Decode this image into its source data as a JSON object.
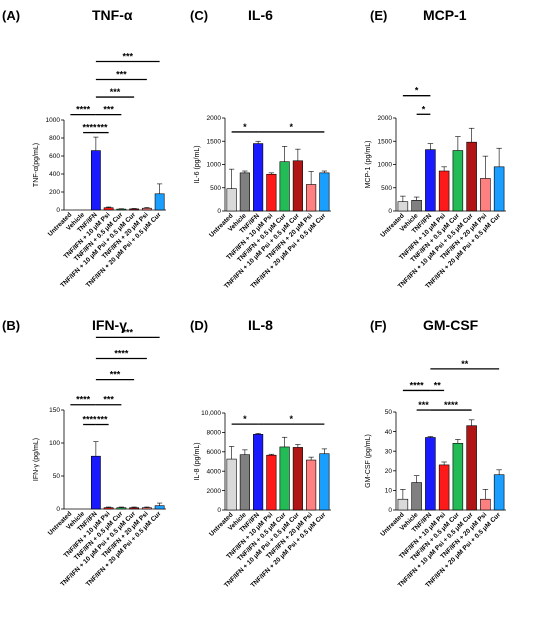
{
  "colors": [
    "#d9d9d9",
    "#808080",
    "#1a1aff",
    "#ff1a1a",
    "#22bb55",
    "#b01515",
    "#ff8080",
    "#1a9fff"
  ],
  "chart_data": [
    {
      "type": "bar",
      "id": "A",
      "panel_label": "(A)",
      "title": "TNF-α",
      "ylabel": "TNF-α(pg/mL)",
      "ylim": [
        0,
        1000
      ],
      "yticks": [
        0,
        200,
        400,
        600,
        800,
        1000
      ],
      "ytick_labels": [
        "0",
        "200",
        "400",
        "600",
        "800",
        "1000"
      ],
      "categories": [
        "Untreated",
        "Vehicle",
        "TNF/IFN",
        "TNF/IFN + 10 μM Psi",
        "TNF/IFN + 0.5 μM Cur",
        "TNF/IFN + 10 μM Psi + 0.5 μM Cur",
        "TNF/IFN + 20 μM Psi",
        "TNF/IFN + 20 μM Psi + 0.5 μM Cur"
      ],
      "values": [
        0,
        0,
        660,
        25,
        10,
        12,
        20,
        180
      ],
      "errors": [
        0,
        0,
        150,
        8,
        4,
        5,
        8,
        110
      ],
      "significance": [
        {
          "from": 2,
          "to": 7,
          "label": "***",
          "y": 1650
        },
        {
          "from": 2,
          "to": 6,
          "label": "***",
          "y": 1450
        },
        {
          "from": 2,
          "to": 5,
          "label": "***",
          "y": 1255
        },
        {
          "from": 0,
          "to": 2,
          "label": "****",
          "y": 1060
        },
        {
          "from": 2,
          "to": 4,
          "label": "***",
          "y": 1060
        },
        {
          "from": 1,
          "to": 2,
          "label": "****",
          "y": 860
        },
        {
          "from": 2,
          "to": 3,
          "label": "***",
          "y": 860
        }
      ]
    },
    {
      "type": "bar",
      "id": "C",
      "panel_label": "(C)",
      "title": "IL-6",
      "ylabel": "IL-6 (pg/mL)",
      "ylim": [
        0,
        2000
      ],
      "yticks": [
        0,
        500,
        1000,
        1500,
        2000
      ],
      "ytick_labels": [
        "0",
        "500",
        "1000",
        "1500",
        "2000"
      ],
      "categories": [
        "Untreated",
        "Vehicle",
        "TNF/IFN",
        "TNF/IFN + 10 μM Psi",
        "TNF/IFN + 0.5 μM Cur",
        "TNF/IFN + 10 μM Psi + 0.5 μM Cur",
        "TNF/IFN + 20 μM Psi",
        "TNF/IFN + 20 μM Psi + 0.5 μM Cur"
      ],
      "values": [
        480,
        820,
        1450,
        790,
        1060,
        1080,
        570,
        820
      ],
      "errors": [
        420,
        40,
        50,
        30,
        330,
        250,
        280,
        40
      ],
      "significance": [
        {
          "from": 0,
          "to": 2,
          "label": "*",
          "y": 1700
        },
        {
          "from": 2,
          "to": 7,
          "label": "*",
          "y": 1700
        }
      ]
    },
    {
      "type": "bar",
      "id": "E",
      "panel_label": "(E)",
      "title": "MCP-1",
      "ylabel": "MCP-1 (pg/mL)",
      "ylim": [
        0,
        2000
      ],
      "yticks": [
        0,
        500,
        1000,
        1500,
        2000
      ],
      "ytick_labels": [
        "0",
        "500",
        "1000",
        "1500",
        "2000"
      ],
      "categories": [
        "Untreated",
        "Vehicle",
        "TNF/IFN",
        "TNF/IFN + 10 μM Psi",
        "TNF/IFN + 0.5 μM Cur",
        "TNF/IFN + 10 μM Psi + 0.5 μM Cur",
        "TNF/IFN + 20 μM Psi",
        "TNF/IFN + 20 μM Psi + 0.5 μM Cur"
      ],
      "values": [
        200,
        230,
        1320,
        860,
        1300,
        1480,
        700,
        950
      ],
      "errors": [
        120,
        70,
        130,
        90,
        300,
        300,
        480,
        400
      ],
      "significance": [
        {
          "from": 0,
          "to": 2,
          "label": "*",
          "y": 2480
        },
        {
          "from": 1,
          "to": 2,
          "label": "*",
          "y": 2080
        }
      ]
    },
    {
      "type": "bar",
      "id": "B",
      "panel_label": "(B)",
      "title": "IFN-γ",
      "ylabel": "IFN-γ (pg/mL)",
      "ylim": [
        0,
        150
      ],
      "yticks": [
        0,
        50,
        100,
        150
      ],
      "ytick_labels": [
        "0",
        "50",
        "100",
        "150"
      ],
      "categories": [
        "Untreated",
        "Vehicle",
        "TNF/IFN",
        "TNF/IFN + 10 μM Psi",
        "TNF/IFN + 0.5 μM Cur",
        "TNF/IFN + 10 μM Psi + 0.5 μM Cur",
        "TNF/IFN + 20 μM Psi",
        "TNF/IFN + 20 μM Psi + 0.5 μM Cur"
      ],
      "values": [
        0,
        0,
        80,
        2,
        2,
        2,
        2,
        5
      ],
      "errors": [
        0,
        0,
        22,
        1,
        1,
        1,
        1,
        4
      ],
      "significance": [
        {
          "from": 2,
          "to": 7,
          "label": "***",
          "y": 260
        },
        {
          "from": 2,
          "to": 6,
          "label": "****",
          "y": 228
        },
        {
          "from": 2,
          "to": 5,
          "label": "***",
          "y": 196
        },
        {
          "from": 0,
          "to": 2,
          "label": "****",
          "y": 158
        },
        {
          "from": 2,
          "to": 4,
          "label": "***",
          "y": 158
        },
        {
          "from": 1,
          "to": 2,
          "label": "****",
          "y": 128
        },
        {
          "from": 2,
          "to": 3,
          "label": "***",
          "y": 128
        }
      ]
    },
    {
      "type": "bar",
      "id": "D",
      "panel_label": "(D)",
      "title": "IL-8",
      "ylabel": "IL-8 (pg/mL)",
      "ylim": [
        0,
        10000
      ],
      "yticks": [
        0,
        2000,
        4000,
        6000,
        8000,
        10000
      ],
      "ytick_labels": [
        "0",
        "2000",
        "4000",
        "6000",
        "8000",
        "10,000"
      ],
      "categories": [
        "Untreated",
        "Vehicle",
        "TNF/IFN",
        "TNF/IFN + 10 μM Psi",
        "TNF/IFN + 0.5 μM Cur",
        "TNF/IFN + 10 μM Psi + 0.5 μM Cur",
        "TNF/IFN + 20 μM Psi",
        "TNF/IFN + 20 μM Psi + 0.5 μM Cur"
      ],
      "values": [
        5250,
        5700,
        7800,
        5650,
        6500,
        6450,
        5150,
        5800
      ],
      "errors": [
        1300,
        500,
        100,
        100,
        1000,
        300,
        300,
        500
      ],
      "significance": [
        {
          "from": 0,
          "to": 2,
          "label": "*",
          "y": 8850
        },
        {
          "from": 2,
          "to": 7,
          "label": "*",
          "y": 8850
        }
      ]
    },
    {
      "type": "bar",
      "id": "F",
      "panel_label": "(F)",
      "title": "GM-CSF",
      "ylabel": "GM-CSF (pg/mL)",
      "ylim": [
        0,
        50
      ],
      "yticks": [
        0,
        10,
        20,
        30,
        40,
        50
      ],
      "ytick_labels": [
        "0",
        "10",
        "20",
        "30",
        "40",
        "50"
      ],
      "categories": [
        "Untreated",
        "Vehicle",
        "TNF/IFN",
        "TNF/IFN + 10 μM Psi",
        "TNF/IFN + 0.5 μM Cur",
        "TNF/IFN + 10 μM Psi + 0.5 μM Cur",
        "TNF/IFN + 20 μM Psi",
        "TNF/IFN + 20 μM Psi + 0.5 μM Cur"
      ],
      "values": [
        5.5,
        14,
        37,
        23,
        34,
        43,
        5.5,
        18
      ],
      "errors": [
        5,
        3.5,
        0.5,
        1.5,
        2,
        3,
        5,
        2.5
      ],
      "significance": [
        {
          "from": 2,
          "to": 7,
          "label": "**",
          "y": 72
        },
        {
          "from": 0,
          "to": 2,
          "label": "****",
          "y": 61
        },
        {
          "from": 2,
          "to": 3,
          "label": "**",
          "y": 61
        },
        {
          "from": 1,
          "to": 2,
          "label": "***",
          "y": 51
        },
        {
          "from": 2,
          "to": 5,
          "label": "****",
          "y": 51
        }
      ]
    }
  ]
}
